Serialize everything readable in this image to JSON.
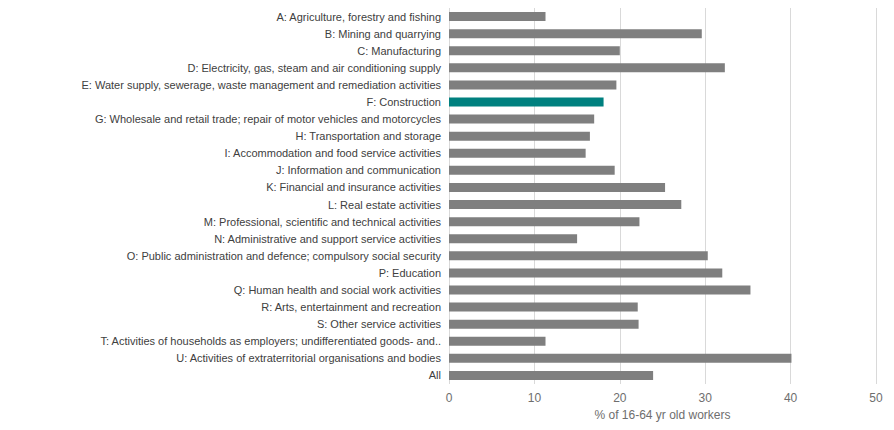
{
  "chart_data": {
    "type": "bar",
    "orientation": "horizontal",
    "x_label": "% of 16-64 yr old workers",
    "categories": [
      "A: Agriculture, forestry and fishing",
      "B: Mining and quarrying",
      "C: Manufacturing",
      "D: Electricity, gas, steam and air conditioning supply",
      "E: Water supply, sewerage, waste management and remediation activities",
      "F: Construction",
      "G: Wholesale and retail trade; repair of motor vehicles and motorcycles",
      "H: Transportation and storage",
      "I: Accommodation and food service activities",
      "J: Information and communication",
      "K: Financial and insurance activities",
      "L: Real estate activities",
      "M: Professional, scientific and technical activities",
      "N: Administrative and support service activities",
      "O: Public administration and defence; compulsory social security",
      "P: Education",
      "Q: Human health and social work activities",
      "R: Arts, entertainment and recreation",
      "S: Other service activities",
      "T: Activities of households as employers; undifferentiated goods- and..",
      "U: Activities of extraterritorial organisations and bodies",
      "All"
    ],
    "values": [
      11.3,
      29.6,
      20.0,
      32.3,
      19.6,
      18.1,
      17.0,
      16.5,
      16.0,
      19.4,
      25.3,
      27.2,
      22.3,
      15.0,
      30.3,
      32.0,
      35.3,
      22.1,
      22.2,
      11.3,
      40.1,
      23.9
    ],
    "colors": [
      "#7f7f7f",
      "#7f7f7f",
      "#7f7f7f",
      "#7f7f7f",
      "#7f7f7f",
      "#00807f",
      "#7f7f7f",
      "#7f7f7f",
      "#7f7f7f",
      "#7f7f7f",
      "#7f7f7f",
      "#7f7f7f",
      "#7f7f7f",
      "#7f7f7f",
      "#7f7f7f",
      "#7f7f7f",
      "#7f7f7f",
      "#7f7f7f",
      "#7f7f7f",
      "#7f7f7f",
      "#7f7f7f",
      "#7f7f7f"
    ],
    "xlim": [
      0,
      50
    ],
    "xticks": [
      0,
      10,
      20,
      30,
      40,
      50
    ],
    "grid": true
  }
}
